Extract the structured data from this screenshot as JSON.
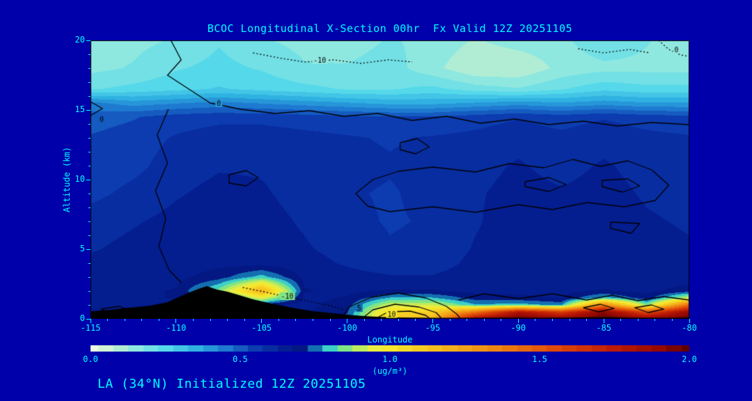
{
  "title": "BCOC Longitudinal X-Section 00hr  Fx Valid 12Z 20251105",
  "caption": "LA (34°N) Initialized 12Z 20251105",
  "colors": {
    "background": "#0000AA",
    "text": "#00FFFF",
    "contour_line": "#000000",
    "terrain": "#000000",
    "plot_frame": "#000000"
  },
  "chart_data": {
    "type": "heatmap",
    "title": "BCOC Longitudinal X-Section 00hr  Fx Valid 12Z 20251105",
    "xlabel": "Longitude",
    "ylabel": "Altitude (km)",
    "units": "(ug/m³)",
    "xlim": [
      -115,
      -80
    ],
    "ylim": [
      0,
      20
    ],
    "xticks": [
      -115,
      -110,
      -105,
      -100,
      -95,
      -90,
      -85,
      -80
    ],
    "yticks": [
      0,
      5,
      10,
      15,
      20
    ],
    "colorbar": {
      "min": 0.0,
      "max": 2.0,
      "ticks": [
        "0.0",
        "0.5",
        "1.0",
        "1.5",
        "2.0"
      ]
    },
    "colormap": [
      [
        0.0,
        "#ECF9E4"
      ],
      [
        0.07,
        "#C6F0CE"
      ],
      [
        0.15,
        "#8FE8DF"
      ],
      [
        0.25,
        "#55D8EA"
      ],
      [
        0.35,
        "#2FB2E2"
      ],
      [
        0.45,
        "#1E7AD0"
      ],
      [
        0.55,
        "#0C3CB0"
      ],
      [
        0.65,
        "#041E90"
      ],
      [
        0.72,
        "#03167E"
      ],
      [
        0.78,
        "#22C8E2"
      ],
      [
        0.86,
        "#8CE878"
      ],
      [
        0.93,
        "#E2EE4A"
      ],
      [
        1.0,
        "#F6E62C"
      ],
      [
        1.15,
        "#F6BE1E"
      ],
      [
        1.35,
        "#EE8612"
      ],
      [
        1.55,
        "#E04A08"
      ],
      [
        1.75,
        "#BC1A04"
      ],
      [
        1.9,
        "#940800"
      ],
      [
        2.0,
        "#5E0000"
      ]
    ],
    "grid": {
      "lons": [
        -115,
        -112.5,
        -110,
        -107.5,
        -105,
        -102.5,
        -100,
        -97.5,
        -95,
        -92.5,
        -90,
        -87.5,
        -85,
        -82.5,
        -80
      ],
      "alts": [
        0,
        0.5,
        1,
        1.5,
        2,
        3,
        4,
        5,
        7,
        9,
        11,
        13,
        14.5,
        15.5,
        16.5,
        18,
        20
      ],
      "values": [
        [
          0.66,
          0.66,
          0.66,
          0.66,
          0.66,
          0.68,
          0.74,
          1.1,
          1.18,
          1.85,
          2.0,
          1.92,
          2.0,
          1.92,
          2.0
        ],
        [
          0.66,
          0.66,
          0.66,
          0.66,
          0.67,
          0.67,
          0.72,
          1.05,
          1.08,
          1.4,
          1.8,
          1.6,
          1.92,
          1.55,
          1.88
        ],
        [
          0.65,
          0.66,
          0.66,
          0.67,
          0.68,
          0.66,
          0.7,
          0.92,
          0.92,
          0.78,
          0.8,
          0.76,
          1.35,
          0.85,
          1.45
        ],
        [
          0.65,
          0.66,
          0.68,
          0.7,
          0.95,
          0.66,
          0.68,
          0.78,
          0.78,
          0.7,
          0.69,
          0.67,
          0.8,
          0.69,
          0.92
        ],
        [
          0.65,
          0.66,
          0.68,
          0.85,
          1.2,
          0.68,
          0.66,
          0.68,
          0.68,
          0.66,
          0.66,
          0.66,
          0.68,
          0.66,
          0.7
        ],
        [
          0.64,
          0.65,
          0.66,
          0.7,
          0.8,
          0.66,
          0.64,
          0.63,
          0.63,
          0.65,
          0.65,
          0.65,
          0.65,
          0.65,
          0.65
        ],
        [
          0.64,
          0.64,
          0.65,
          0.66,
          0.65,
          0.64,
          0.62,
          0.6,
          0.6,
          0.64,
          0.65,
          0.65,
          0.65,
          0.65,
          0.64
        ],
        [
          0.62,
          0.64,
          0.64,
          0.65,
          0.64,
          0.63,
          0.61,
          0.58,
          0.59,
          0.63,
          0.65,
          0.65,
          0.65,
          0.64,
          0.63
        ],
        [
          0.6,
          0.62,
          0.64,
          0.64,
          0.64,
          0.62,
          0.59,
          0.57,
          0.58,
          0.62,
          0.65,
          0.64,
          0.65,
          0.63,
          0.62
        ],
        [
          0.56,
          0.59,
          0.62,
          0.64,
          0.63,
          0.61,
          0.58,
          0.57,
          0.59,
          0.62,
          0.64,
          0.63,
          0.64,
          0.62,
          0.61
        ],
        [
          0.54,
          0.56,
          0.6,
          0.62,
          0.62,
          0.61,
          0.59,
          0.58,
          0.59,
          0.61,
          0.63,
          0.61,
          0.63,
          0.61,
          0.6
        ],
        [
          0.53,
          0.55,
          0.58,
          0.6,
          0.6,
          0.59,
          0.58,
          0.57,
          0.58,
          0.59,
          0.61,
          0.59,
          0.61,
          0.59,
          0.58
        ],
        [
          0.5,
          0.52,
          0.55,
          0.56,
          0.56,
          0.55,
          0.54,
          0.53,
          0.53,
          0.55,
          0.57,
          0.55,
          0.57,
          0.55,
          0.54
        ],
        [
          0.44,
          0.4,
          0.42,
          0.44,
          0.42,
          0.4,
          0.38,
          0.36,
          0.36,
          0.38,
          0.4,
          0.38,
          0.4,
          0.38,
          0.38
        ],
        [
          0.22,
          0.24,
          0.26,
          0.28,
          0.26,
          0.24,
          0.22,
          0.22,
          0.24,
          0.2,
          0.18,
          0.22,
          0.26,
          0.24,
          0.24
        ],
        [
          0.16,
          0.18,
          0.22,
          0.24,
          0.22,
          0.18,
          0.18,
          0.2,
          0.14,
          0.08,
          0.08,
          0.14,
          0.16,
          0.16,
          0.16
        ],
        [
          0.14,
          0.16,
          0.18,
          0.22,
          0.18,
          0.16,
          0.15,
          0.18,
          0.16,
          0.12,
          0.15,
          0.16,
          0.22,
          0.18,
          0.14
        ]
      ]
    },
    "terrain": [
      [
        -115,
        0.55
      ],
      [
        -114,
        0.62
      ],
      [
        -113.2,
        0.75
      ],
      [
        -112.5,
        0.82
      ],
      [
        -111.5,
        0.95
      ],
      [
        -110.5,
        1.2
      ],
      [
        -109.5,
        1.75
      ],
      [
        -108.7,
        2.15
      ],
      [
        -108.2,
        2.35
      ],
      [
        -107.6,
        2.1
      ],
      [
        -107,
        1.95
      ],
      [
        -106.3,
        1.7
      ],
      [
        -105.5,
        1.4
      ],
      [
        -104.8,
        1.2
      ],
      [
        -104,
        1.0
      ],
      [
        -103,
        0.75
      ],
      [
        -102,
        0.55
      ],
      [
        -101,
        0.42
      ],
      [
        -100,
        0.3
      ],
      [
        -99,
        0.2
      ],
      [
        -98,
        0.14
      ],
      [
        -97,
        0.1
      ],
      [
        -95,
        0.08
      ],
      [
        -93,
        0.07
      ],
      [
        -91,
        0.09
      ],
      [
        -89,
        0.07
      ],
      [
        -87,
        0.09
      ],
      [
        -85,
        0.12
      ],
      [
        -83,
        0.08
      ],
      [
        -81,
        0.08
      ],
      [
        -80,
        0.1
      ]
    ],
    "contours": [
      {
        "label": "0",
        "style": "solid",
        "label_pos": [
          -107.5,
          15.45
        ],
        "points": [
          [
            -110.3,
            20
          ],
          [
            -109.7,
            18.6
          ],
          [
            -110.5,
            17.5
          ],
          [
            -109.0,
            16.3
          ],
          [
            -108.0,
            15.5
          ],
          [
            -106.2,
            15.05
          ],
          [
            -104.2,
            14.75
          ],
          [
            -102.2,
            14.95
          ],
          [
            -100.2,
            14.55
          ],
          [
            -98.2,
            14.75
          ],
          [
            -96.2,
            14.25
          ],
          [
            -94.2,
            14.55
          ],
          [
            -92.2,
            14.05
          ],
          [
            -90.2,
            14.35
          ],
          [
            -88.2,
            13.95
          ],
          [
            -86.2,
            14.2
          ],
          [
            -84.2,
            13.85
          ],
          [
            -82.2,
            14.1
          ],
          [
            -80,
            13.95
          ]
        ]
      },
      {
        "label": "",
        "style": "solid",
        "points": [
          [
            -110.45,
            15.05
          ],
          [
            -111.1,
            13.2
          ],
          [
            -110.5,
            11.2
          ],
          [
            -111.2,
            9.2
          ],
          [
            -110.6,
            7.2
          ],
          [
            -111.0,
            5.2
          ],
          [
            -110.4,
            3.5
          ],
          [
            -109.7,
            2.6
          ]
        ]
      },
      {
        "label": "-10",
        "style": "dotted",
        "label_pos": [
          -101.6,
          18.55
        ],
        "points": [
          [
            -105.5,
            19.1
          ],
          [
            -103.8,
            18.7
          ],
          [
            -102.5,
            18.45
          ],
          [
            -100.8,
            18.6
          ],
          [
            -99.2,
            18.35
          ],
          [
            -97.6,
            18.6
          ],
          [
            -96.2,
            18.45
          ]
        ]
      },
      {
        "label": "0",
        "style": "dotted",
        "label_pos": [
          -80.75,
          19.3
        ],
        "points": [
          [
            -81.8,
            20
          ],
          [
            -81.2,
            19.35
          ],
          [
            -80.5,
            18.95
          ],
          [
            -80,
            18.85
          ]
        ]
      },
      {
        "label": "",
        "style": "dotted",
        "points": [
          [
            -86.5,
            19.4
          ],
          [
            -85.0,
            19.1
          ],
          [
            -83.5,
            19.35
          ],
          [
            -82.3,
            19.1
          ]
        ]
      },
      {
        "label": "",
        "style": "solid",
        "points": [
          [
            -99.5,
            9.0
          ],
          [
            -98.5,
            10.0
          ],
          [
            -97.0,
            10.6
          ],
          [
            -95.0,
            10.9
          ],
          [
            -92.5,
            10.55
          ],
          [
            -90.5,
            11.15
          ],
          [
            -88.5,
            10.85
          ],
          [
            -86.8,
            11.45
          ],
          [
            -85.2,
            10.95
          ],
          [
            -83.6,
            11.35
          ],
          [
            -82.2,
            10.7
          ],
          [
            -81.2,
            9.6
          ],
          [
            -82.0,
            8.5
          ],
          [
            -83.8,
            8.05
          ],
          [
            -86.0,
            8.35
          ],
          [
            -88.0,
            7.85
          ],
          [
            -90.0,
            8.2
          ],
          [
            -92.5,
            7.65
          ],
          [
            -95.0,
            8.05
          ],
          [
            -97.5,
            7.7
          ],
          [
            -98.8,
            8.1
          ],
          [
            -99.5,
            9.0
          ]
        ]
      },
      {
        "label": "",
        "style": "solid",
        "points": [
          [
            -89.6,
            9.85
          ],
          [
            -88.2,
            10.15
          ],
          [
            -87.2,
            9.65
          ],
          [
            -88.2,
            9.15
          ],
          [
            -89.6,
            9.5
          ],
          [
            -89.6,
            9.85
          ]
        ]
      },
      {
        "label": "",
        "style": "solid",
        "points": [
          [
            -85.1,
            9.95
          ],
          [
            -83.6,
            10.05
          ],
          [
            -82.9,
            9.55
          ],
          [
            -83.9,
            9.1
          ],
          [
            -85.1,
            9.5
          ],
          [
            -85.1,
            9.95
          ]
        ]
      },
      {
        "label": "",
        "style": "solid",
        "points": [
          [
            -84.6,
            6.95
          ],
          [
            -82.9,
            6.85
          ],
          [
            -83.4,
            6.15
          ],
          [
            -84.6,
            6.5
          ],
          [
            -84.6,
            6.95
          ]
        ]
      },
      {
        "label": "",
        "style": "solid",
        "points": [
          [
            -106.9,
            10.35
          ],
          [
            -105.9,
            10.65
          ],
          [
            -105.2,
            10.15
          ],
          [
            -105.9,
            9.55
          ],
          [
            -106.9,
            9.75
          ],
          [
            -106.9,
            10.35
          ]
        ]
      },
      {
        "label": "",
        "style": "solid",
        "points": [
          [
            -96.9,
            12.65
          ],
          [
            -95.9,
            12.95
          ],
          [
            -95.2,
            12.35
          ],
          [
            -96.0,
            11.85
          ],
          [
            -96.9,
            12.15
          ],
          [
            -96.9,
            12.65
          ]
        ]
      },
      {
        "label": "5",
        "style": "solid",
        "label_pos": [
          -99.3,
          0.75
        ],
        "points": [
          [
            -100.3,
            0.05
          ],
          [
            -99.9,
            0.85
          ],
          [
            -98.6,
            1.55
          ],
          [
            -97.0,
            1.85
          ],
          [
            -95.4,
            1.5
          ],
          [
            -94.2,
            0.9
          ],
          [
            -93.6,
            0.35
          ],
          [
            -93.4,
            0.05
          ]
        ]
      },
      {
        "label": "10",
        "style": "solid",
        "label_pos": [
          -97.4,
          0.32
        ],
        "points": [
          [
            -99.1,
            0.05
          ],
          [
            -98.5,
            0.65
          ],
          [
            -97.2,
            1.05
          ],
          [
            -95.8,
            0.85
          ],
          [
            -94.8,
            0.45
          ],
          [
            -94.5,
            0.05
          ]
        ]
      },
      {
        "label": "",
        "style": "solid",
        "points": [
          [
            -98.3,
            0.05
          ],
          [
            -97.6,
            0.5
          ],
          [
            -96.3,
            0.55
          ],
          [
            -95.4,
            0.25
          ],
          [
            -95.2,
            0.05
          ]
        ]
      },
      {
        "label": "-10",
        "style": "dotted",
        "label_pos": [
          -103.5,
          1.6
        ],
        "points": [
          [
            -106.1,
            2.25
          ],
          [
            -104.9,
            1.95
          ],
          [
            -103.6,
            1.6
          ],
          [
            -102.2,
            1.25
          ],
          [
            -101.0,
            0.95
          ],
          [
            -100.2,
            0.65
          ]
        ]
      },
      {
        "label": "",
        "style": "solid",
        "points": [
          [
            -93.5,
            1.35
          ],
          [
            -92.0,
            1.8
          ],
          [
            -90.0,
            1.45
          ],
          [
            -88.0,
            1.8
          ],
          [
            -86.0,
            1.35
          ],
          [
            -84.5,
            1.7
          ],
          [
            -83.0,
            1.3
          ],
          [
            -81.5,
            1.6
          ],
          [
            -80,
            1.35
          ]
        ]
      },
      {
        "label": "",
        "style": "solid",
        "points": [
          [
            -86.2,
            0.8
          ],
          [
            -85.2,
            1.05
          ],
          [
            -84.4,
            0.75
          ],
          [
            -85.3,
            0.5
          ],
          [
            -86.2,
            0.8
          ]
        ]
      },
      {
        "label": "",
        "style": "solid",
        "points": [
          [
            -83.2,
            0.8
          ],
          [
            -82.2,
            1.0
          ],
          [
            -81.5,
            0.7
          ],
          [
            -82.4,
            0.45
          ],
          [
            -83.2,
            0.8
          ]
        ]
      },
      {
        "label": "",
        "style": "solid",
        "points": [
          [
            -114.4,
            0.7
          ],
          [
            -113.3,
            0.9
          ],
          [
            -112.7,
            0.6
          ],
          [
            -113.7,
            0.4
          ],
          [
            -114.4,
            0.7
          ]
        ]
      },
      {
        "label": "0",
        "style": "solid",
        "label_pos": [
          -114.35,
          14.3
        ],
        "points": [
          [
            -115,
            15.6
          ],
          [
            -114.3,
            15.1
          ],
          [
            -115,
            14.6
          ]
        ]
      }
    ]
  }
}
